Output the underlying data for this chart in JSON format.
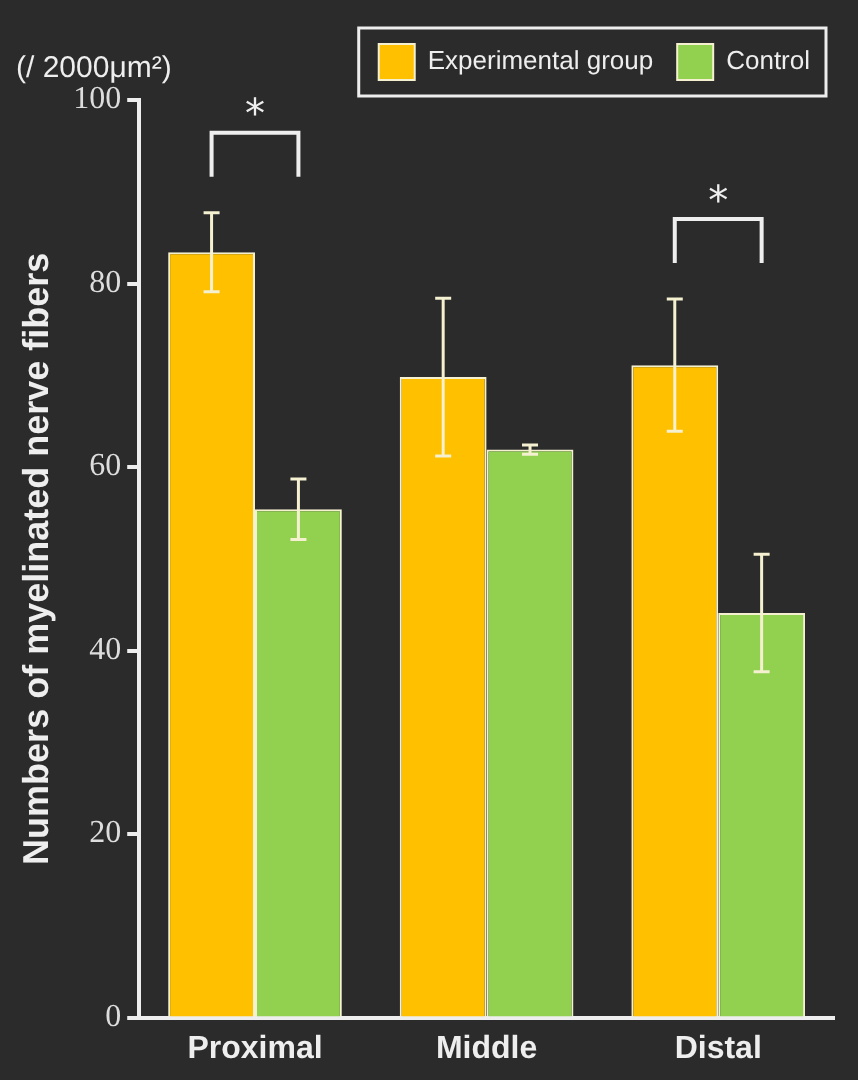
{
  "chart_data": {
    "type": "bar",
    "ylabel": "Numbers of myelinated nerve fibers",
    "categories": [
      "Proximal",
      "Middle",
      "Distal"
    ],
    "series": [
      {
        "name": "Experimental group",
        "color": "#ffc000",
        "values": [
          83.4,
          69.8,
          71.1
        ],
        "errors": [
          4.3,
          8.6,
          7.2
        ]
      },
      {
        "name": "Control",
        "color": "#92d050",
        "values": [
          55.4,
          61.9,
          44.1
        ],
        "errors": [
          3.3,
          0.5,
          6.4
        ]
      }
    ],
    "ylim": [
      0,
      100
    ],
    "yticks": [
      0,
      20,
      40,
      60,
      80,
      100
    ],
    "grid": false,
    "legend": "top right",
    "annotations": [
      "(/ 2000μm²)",
      "*",
      "*"
    ]
  }
}
